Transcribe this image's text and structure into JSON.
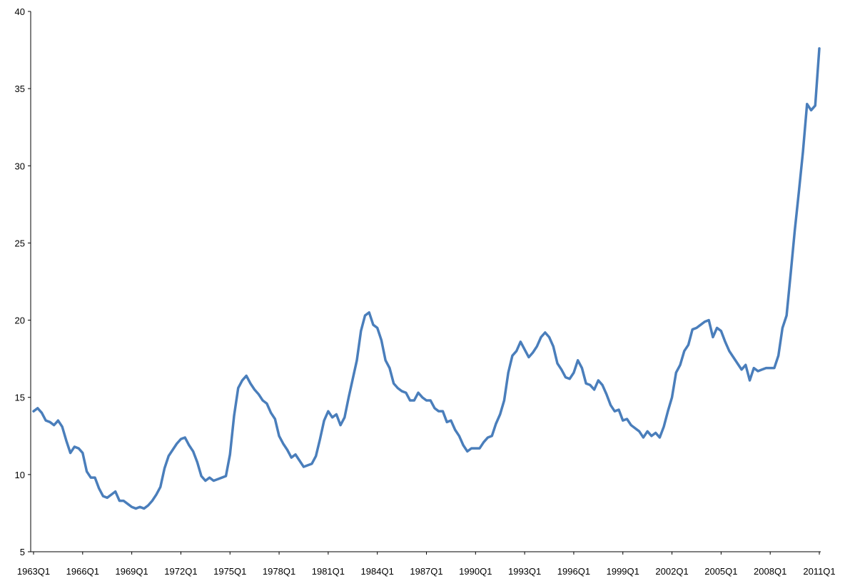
{
  "chart_data": {
    "type": "line",
    "title": "",
    "xlabel": "",
    "ylabel": "",
    "ylim": [
      5,
      40
    ],
    "yticks": [
      "5",
      "10",
      "15",
      "20",
      "25",
      "30",
      "35",
      "40"
    ],
    "xtick_labels": [
      "1963Q1",
      "1966Q1",
      "1969Q1",
      "1972Q1",
      "1975Q1",
      "1978Q1",
      "1981Q1",
      "1984Q1",
      "1987Q1",
      "1990Q1",
      "1993Q1",
      "1996Q1",
      "1999Q1",
      "2002Q1",
      "2005Q1",
      "2008Q1",
      "2011Q1"
    ],
    "grid": false,
    "legend": "none",
    "line_color": "#4a7ebb",
    "x_start": "1963Q1",
    "x_end": "2011Q1",
    "frequency": "quarterly",
    "series": [
      {
        "values": [
          14.1,
          14.3,
          14.0,
          13.5,
          13.4,
          13.2,
          13.5,
          13.1,
          12.2,
          11.4,
          11.8,
          11.7,
          11.4,
          10.2,
          9.8,
          9.8,
          9.1,
          8.6,
          8.5,
          8.7,
          8.9,
          8.3,
          8.3,
          8.1,
          7.9,
          7.8,
          7.9,
          7.8,
          8.0,
          8.3,
          8.7,
          9.2,
          10.4,
          11.2,
          11.6,
          12.0,
          12.3,
          12.4,
          11.9,
          11.5,
          10.8,
          9.9,
          9.6,
          9.8,
          9.6,
          9.7,
          9.8,
          9.9,
          11.3,
          13.8,
          15.6,
          16.1,
          16.4,
          15.9,
          15.5,
          15.2,
          14.8,
          14.6,
          14.0,
          13.6,
          12.5,
          12.0,
          11.6,
          11.1,
          11.3,
          10.9,
          10.5,
          10.6,
          10.7,
          11.2,
          12.3,
          13.5,
          14.1,
          13.7,
          13.9,
          13.2,
          13.7,
          15.0,
          16.2,
          17.4,
          19.3,
          20.3,
          20.5,
          19.7,
          19.5,
          18.7,
          17.4,
          16.9,
          15.9,
          15.6,
          15.4,
          15.3,
          14.8,
          14.8,
          15.3,
          15.0,
          14.8,
          14.8,
          14.3,
          14.1,
          14.1,
          13.4,
          13.5,
          12.9,
          12.5,
          11.9,
          11.5,
          11.7,
          11.7,
          11.7,
          12.1,
          12.4,
          12.5,
          13.3,
          13.9,
          14.8,
          16.6,
          17.7,
          18.0,
          18.6,
          18.1,
          17.6,
          17.9,
          18.3,
          18.9,
          19.2,
          18.9,
          18.3,
          17.2,
          16.8,
          16.3,
          16.2,
          16.6,
          17.4,
          16.9,
          15.9,
          15.8,
          15.5,
          16.1,
          15.8,
          15.2,
          14.5,
          14.1,
          14.2,
          13.5,
          13.6,
          13.2,
          13.0,
          12.8,
          12.4,
          12.8,
          12.5,
          12.7,
          12.4,
          13.1,
          14.1,
          15.0,
          16.6,
          17.1,
          18.0,
          18.4,
          19.4,
          19.5,
          19.7,
          19.9,
          20.0,
          18.9,
          19.5,
          19.3,
          18.6,
          18.0,
          17.6,
          17.2,
          16.8,
          17.1,
          16.1,
          16.9,
          16.7,
          16.8,
          16.9,
          16.9,
          16.9,
          17.7,
          19.5,
          20.3,
          23.0,
          25.8,
          28.3,
          30.9,
          34.0,
          33.6,
          33.9,
          37.6
        ]
      }
    ]
  }
}
